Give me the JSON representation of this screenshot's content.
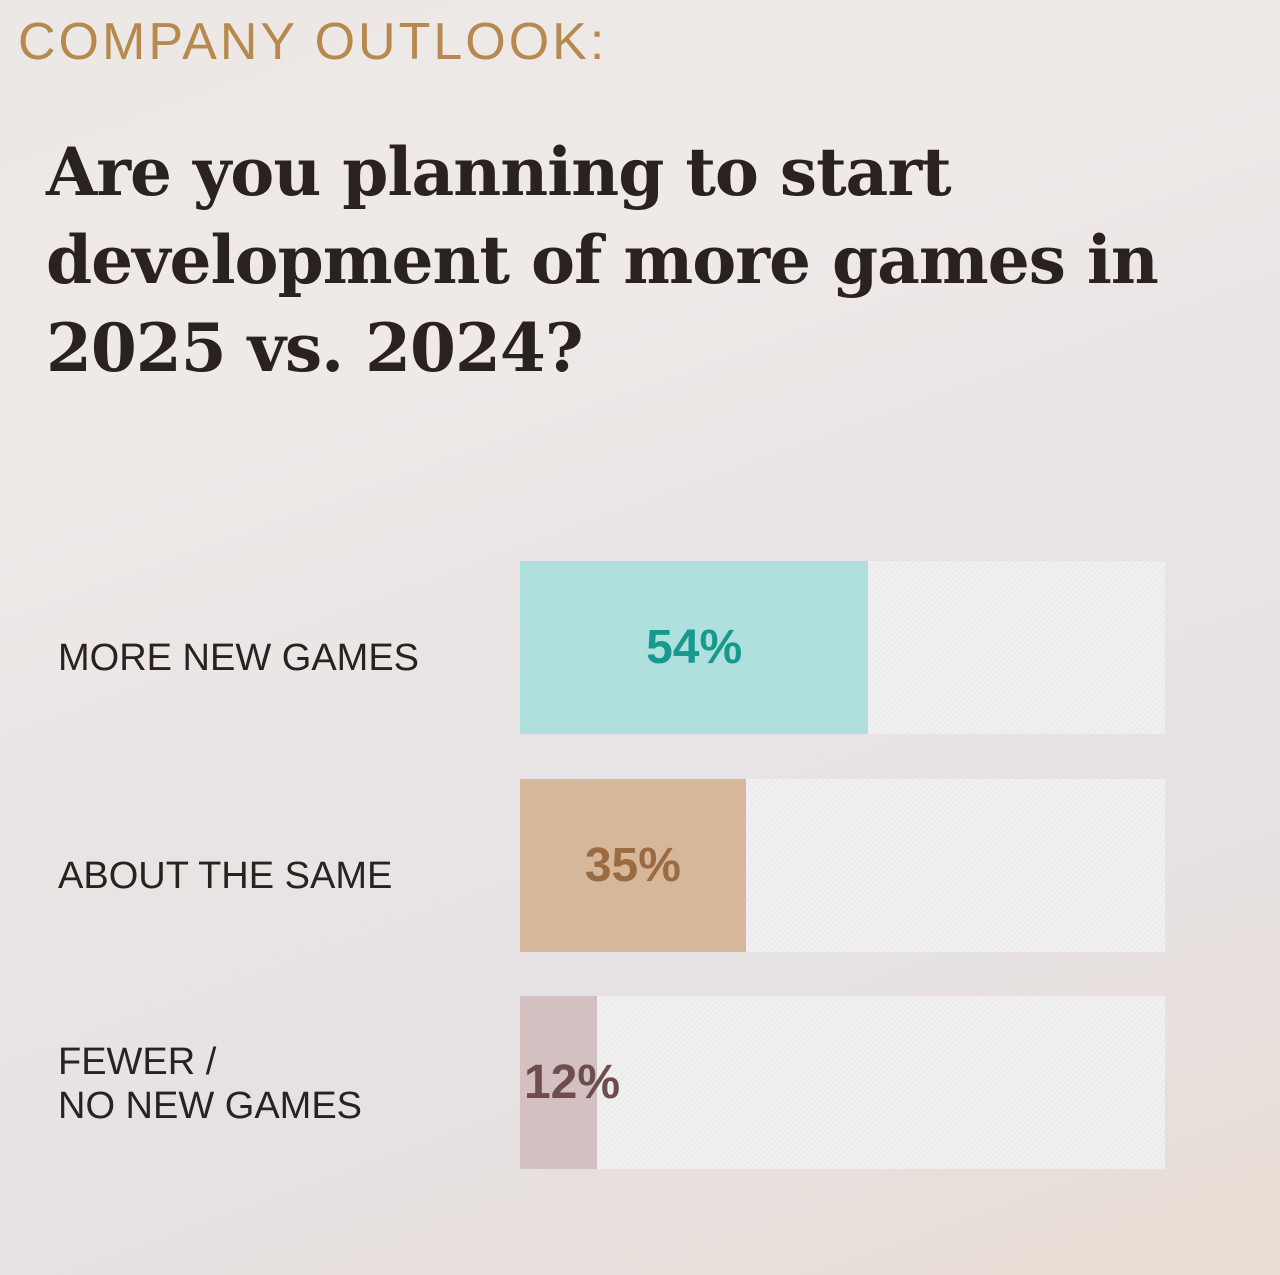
{
  "header": {
    "kicker": "COMPANY OUTLOOK:",
    "question": "Are you planning to start development of more games in 2025 vs. 2024?"
  },
  "chart_data": {
    "type": "bar",
    "orientation": "horizontal",
    "title": "Are you planning to start development of more games in 2025 vs. 2024?",
    "categories": [
      "MORE NEW GAMES",
      "ABOUT THE SAME",
      "FEWER / NO NEW GAMES"
    ],
    "values": [
      54,
      35,
      12
    ],
    "value_labels": [
      "54%",
      "35%",
      "12%"
    ],
    "xlim": [
      0,
      100
    ],
    "colors": {
      "bars": [
        "#b0e0de",
        "#d7b799",
        "#d4c0c1"
      ],
      "labels": [
        "#17998f",
        "#9a6a40",
        "#6d4e4c"
      ]
    }
  }
}
